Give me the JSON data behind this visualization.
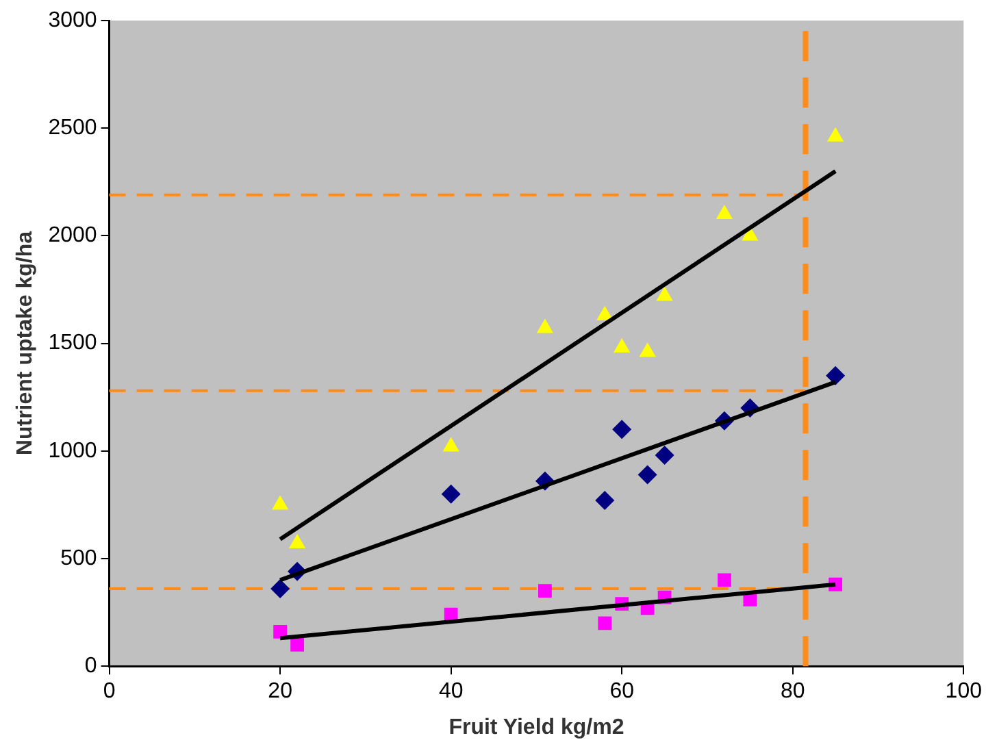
{
  "chart_data": {
    "type": "scatter",
    "xlabel": "Fruit Yield kg/m2",
    "ylabel": "Nutrient uptake kg/ha",
    "xlim": [
      0,
      100
    ],
    "xticks": [
      0,
      20,
      40,
      60,
      80,
      100
    ],
    "ylim": [
      0,
      3000
    ],
    "yticks": [
      0,
      500,
      1000,
      1500,
      2000,
      2500,
      3000
    ],
    "grid": false,
    "legend": false,
    "series": [
      {
        "type": "scatter",
        "marker": "triangle",
        "color": "#ffff00",
        "x": [
          20,
          22,
          40,
          51,
          58,
          60,
          63,
          65,
          72,
          75,
          85
        ],
        "values": [
          750,
          570,
          1020,
          1570,
          1630,
          1480,
          1460,
          1720,
          2100,
          2000,
          2460
        ]
      },
      {
        "type": "scatter",
        "marker": "diamond",
        "color": "#000080",
        "x": [
          20,
          22,
          40,
          51,
          58,
          60,
          63,
          65,
          72,
          75,
          85
        ],
        "values": [
          360,
          440,
          800,
          860,
          770,
          1100,
          890,
          980,
          1140,
          1200,
          1350
        ]
      },
      {
        "type": "scatter",
        "marker": "square",
        "color": "#ff00ff",
        "x": [
          20,
          22,
          40,
          51,
          58,
          60,
          63,
          65,
          72,
          75,
          85
        ],
        "values": [
          160,
          100,
          240,
          350,
          200,
          290,
          270,
          320,
          400,
          310,
          380
        ]
      },
      {
        "type": "line",
        "marker": "none",
        "color": "#000000",
        "x": [
          20,
          85
        ],
        "values": [
          590,
          2300
        ]
      },
      {
        "type": "line",
        "marker": "none",
        "color": "#000000",
        "x": [
          20,
          85
        ],
        "values": [
          400,
          1320
        ]
      },
      {
        "type": "line",
        "marker": "none",
        "color": "#000000",
        "x": [
          20,
          85
        ],
        "values": [
          130,
          380
        ]
      }
    ],
    "ref_lines": [
      {
        "axis": "y",
        "value": 2190,
        "color": "#ff8c1a",
        "line_style": "dashed"
      },
      {
        "axis": "y",
        "value": 1280,
        "color": "#ff8c1a",
        "line_style": "dashed"
      },
      {
        "axis": "y",
        "value": 360,
        "color": "#ff8c1a",
        "line_style": "dashed"
      },
      {
        "axis": "x",
        "value": 81.5,
        "color": "#ff8c1a",
        "line_style": "dashed"
      }
    ]
  }
}
